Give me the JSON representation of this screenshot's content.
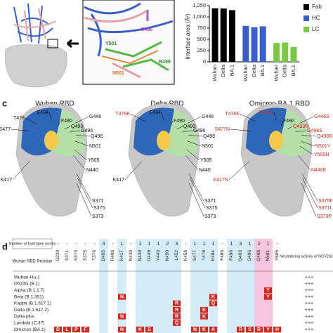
{
  "chart_data": {
    "type": "bar",
    "ylabel": "Interface area (Å²)",
    "categories": [
      "Wuhan",
      "Delta",
      "BA.1"
    ],
    "series": [
      {
        "name": "Fab",
        "color": "#000000",
        "values": [
          1190,
          1185,
          1150
        ]
      },
      {
        "name": "HC",
        "color": "#3a5fcd",
        "values": [
          800,
          770,
          790
        ]
      },
      {
        "name": "LC",
        "color": "#7ac943",
        "values": [
          420,
          430,
          330
        ]
      }
    ],
    "ylim": [
      0,
      1250
    ],
    "yticks": [
      0,
      250,
      500,
      750,
      {
        "value": 1000,
        "label": "1,000"
      },
      {
        "value": 1250,
        "label": "1,250"
      }
    ],
    "legend": "top-right"
  },
  "inset_labels": [
    "Y501",
    "R498",
    "N501",
    "G496"
  ],
  "panel_c": {
    "label": "c",
    "structures": [
      {
        "title": "Wuhan RBD",
        "residues": [
          "T478",
          "E484",
          "F490",
          "S477",
          "Q493",
          "G496",
          "G446",
          "Q498",
          "N501",
          "Y505",
          "N440",
          "K417",
          "S371",
          "S375",
          "S373"
        ]
      },
      {
        "title": "Delta RBD",
        "residues": [
          "T478K",
          "E484",
          "F490",
          "Q493",
          "G496",
          "G446",
          "Q498",
          "N501",
          "Y505",
          "N440",
          "K417",
          "S371",
          "S375",
          "S373"
        ]
      },
      {
        "title": "Omicron BA.1 RBD",
        "residues": [
          "T478K",
          "E484A",
          "F490",
          "Q493R",
          "G496S",
          "G446S",
          "Q498R",
          "N501Y",
          "Y505H",
          "N440K",
          "S477N",
          "K417N",
          "S375F",
          "S371L",
          "S373P"
        ]
      }
    ]
  },
  "table": {
    "label": "d",
    "hbond_header": "Number of hydrogen bonds",
    "residue_header": "Wuhan RBD Residue",
    "activity_header": "Neutralizing activity of NCV2SG48",
    "columns": [
      "G339",
      "S371",
      "S373",
      "S375",
      "T376",
      "D405",
      "R408",
      "K417",
      "N439",
      "N440",
      "G446",
      "Y449",
      "N450",
      "L452",
      "K458",
      "S477",
      "T478",
      "E484",
      "F486",
      "F490",
      "Q493",
      "G496",
      "Q498",
      "N501",
      "Y505"
    ],
    "hbonds": [
      "-",
      "-",
      "-",
      "-",
      "-",
      "4",
      "-",
      "1",
      "-",
      "1",
      "1",
      "1",
      "2",
      "3",
      "-",
      "1",
      "1",
      "1",
      "-",
      "1",
      "3",
      "1",
      "2",
      "1",
      "-"
    ],
    "rows": [
      {
        "name": "Wuhan-Hu-1",
        "activity": "+++",
        "muts": [
          null,
          null,
          null,
          null,
          null,
          null,
          null,
          null,
          null,
          null,
          null,
          null,
          null,
          null,
          null,
          null,
          null,
          null,
          null,
          null,
          null,
          null,
          null,
          null,
          null
        ]
      },
      {
        "name": "D614G (B.1)",
        "activity": "+++",
        "muts": [
          null,
          null,
          null,
          null,
          null,
          null,
          null,
          null,
          null,
          null,
          null,
          null,
          null,
          null,
          null,
          null,
          null,
          null,
          null,
          null,
          null,
          null,
          null,
          null,
          null
        ]
      },
      {
        "name": "Alpha (B.1.1.7)",
        "activity": "+++",
        "muts": [
          null,
          null,
          null,
          null,
          null,
          null,
          null,
          null,
          null,
          null,
          null,
          null,
          null,
          null,
          null,
          null,
          null,
          null,
          null,
          null,
          null,
          null,
          null,
          "Y",
          null
        ]
      },
      {
        "name": "Beta (B.1.351)",
        "activity": "+++",
        "muts": [
          null,
          null,
          null,
          null,
          null,
          null,
          null,
          "N",
          null,
          null,
          null,
          null,
          null,
          null,
          null,
          null,
          null,
          "K",
          null,
          null,
          null,
          null,
          null,
          "Y",
          null
        ]
      },
      {
        "name": "Kappa (B.1.617.1)",
        "activity": "+++",
        "muts": [
          null,
          null,
          null,
          null,
          null,
          null,
          null,
          null,
          null,
          null,
          null,
          null,
          null,
          "R",
          null,
          null,
          null,
          "Q",
          null,
          null,
          null,
          null,
          null,
          null,
          null
        ]
      },
      {
        "name": "Delta (B.1.617.2)",
        "activity": "+++",
        "muts": [
          null,
          null,
          null,
          null,
          null,
          null,
          null,
          null,
          null,
          null,
          null,
          null,
          null,
          "R",
          null,
          null,
          "K",
          null,
          null,
          null,
          null,
          null,
          null,
          null,
          null
        ]
      },
      {
        "name": "Delta plus",
        "activity": "+++",
        "muts": [
          null,
          null,
          null,
          null,
          null,
          null,
          null,
          "N",
          null,
          null,
          null,
          null,
          null,
          "R",
          null,
          null,
          "K",
          null,
          null,
          null,
          null,
          null,
          null,
          null,
          null
        ]
      },
      {
        "name": "Lambda (C.37)",
        "activity": "+++",
        "muts": [
          null,
          null,
          null,
          null,
          null,
          null,
          null,
          null,
          null,
          null,
          null,
          null,
          null,
          "Q",
          null,
          null,
          null,
          null,
          null,
          null,
          null,
          null,
          null,
          null,
          null
        ]
      },
      {
        "name": "Omicron (BA.1)",
        "activity": "+++",
        "muts": [
          "D",
          "L",
          "P",
          "F",
          null,
          null,
          null,
          "N",
          null,
          "K",
          "S",
          null,
          null,
          null,
          null,
          "N",
          "K",
          "A",
          null,
          null,
          "R",
          "S",
          "R",
          "Y",
          "H"
        ]
      }
    ]
  }
}
